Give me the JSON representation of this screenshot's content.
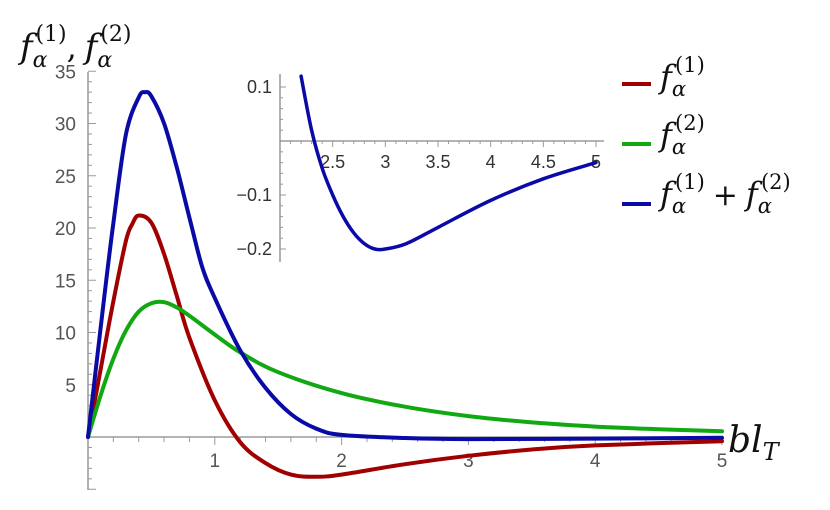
{
  "colors": {
    "f1": "#a00000",
    "f2": "#12a812",
    "sum": "#0a0aa6"
  },
  "chart_data": [
    {
      "type": "line",
      "xlabel": {
        "base": "bl",
        "sub": "T"
      },
      "ylabel": {
        "f": "f",
        "sub": "α",
        "sup1": "(1)",
        "comma": ",",
        "sup2": "(2)"
      },
      "xlim": [
        0,
        5
      ],
      "ylim": [
        -5,
        35
      ],
      "xticks": [
        "1",
        "2",
        "3",
        "4",
        "5"
      ],
      "yticks": [
        "5",
        "10",
        "15",
        "20",
        "25",
        "30",
        "35"
      ],
      "series": [
        {
          "key": "f1",
          "x": [
            0,
            0.1,
            0.2,
            0.3,
            0.35,
            0.4,
            0.5,
            0.6,
            0.7,
            0.8,
            1.0,
            1.2,
            1.4,
            1.6,
            1.8,
            2.0,
            2.5,
            3.0,
            3.5,
            4.0,
            5.0
          ],
          "y": [
            0,
            6.5,
            13,
            18.8,
            20.4,
            21.2,
            20.5,
            17.5,
            13.5,
            9.5,
            3.5,
            -0.5,
            -2.5,
            -3.6,
            -3.8,
            -3.6,
            -2.6,
            -1.8,
            -1.2,
            -0.8,
            -0.4
          ]
        },
        {
          "key": "f2",
          "x": [
            0,
            0.1,
            0.2,
            0.3,
            0.4,
            0.5,
            0.6,
            0.7,
            0.8,
            1.0,
            1.2,
            1.5,
            2.0,
            2.5,
            3.0,
            3.5,
            4.0,
            4.5,
            5.0
          ],
          "y": [
            0,
            4,
            7.5,
            10.2,
            12,
            12.8,
            12.9,
            12.4,
            11.6,
            9.8,
            8.1,
            6.2,
            4.2,
            2.9,
            2.0,
            1.4,
            1.0,
            0.75,
            0.55
          ]
        },
        {
          "key": "sum",
          "x": [
            0,
            0.1,
            0.2,
            0.3,
            0.4,
            0.45,
            0.5,
            0.6,
            0.7,
            0.8,
            0.9,
            1.0,
            1.2,
            1.4,
            1.6,
            1.8,
            2.0,
            2.5,
            3.0,
            4.0,
            5.0
          ],
          "y": [
            0,
            10.5,
            20.5,
            29,
            32.5,
            33,
            32.6,
            30,
            25.8,
            21,
            16.3,
            13.3,
            8.3,
            4.7,
            2.2,
            0.8,
            0.2,
            -0.1,
            -0.2,
            -0.15,
            -0.08
          ]
        }
      ]
    },
    {
      "type": "line",
      "inset": true,
      "xlim": [
        2.0,
        5.0
      ],
      "ylim": [
        -0.21,
        0.12
      ],
      "xticks": [
        "2.5",
        "3",
        "3.5",
        "4",
        "4.5",
        "5"
      ],
      "yticks": [
        "0.1",
        "−0.1",
        "−0.2"
      ],
      "series": [
        {
          "key": "sum",
          "x": [
            2.2,
            2.3,
            2.4,
            2.5,
            2.6,
            2.7,
            2.8,
            2.9,
            3.0,
            3.2,
            3.5,
            4.0,
            4.5,
            5.0
          ],
          "y": [
            0.12,
            0.02,
            -0.05,
            -0.1,
            -0.14,
            -0.17,
            -0.19,
            -0.2,
            -0.2,
            -0.19,
            -0.16,
            -0.11,
            -0.07,
            -0.04
          ]
        }
      ]
    }
  ],
  "legend": [
    {
      "key": "f1",
      "f": "f",
      "sub": "α",
      "sup": "(1)"
    },
    {
      "key": "f2",
      "f": "f",
      "sub": "α",
      "sup": "(2)"
    },
    {
      "key": "sum",
      "f": "f",
      "sub": "α",
      "sup": "(1)",
      "plus": "+",
      "f2": "f",
      "sub2": "α",
      "sup2": "(2)"
    }
  ]
}
